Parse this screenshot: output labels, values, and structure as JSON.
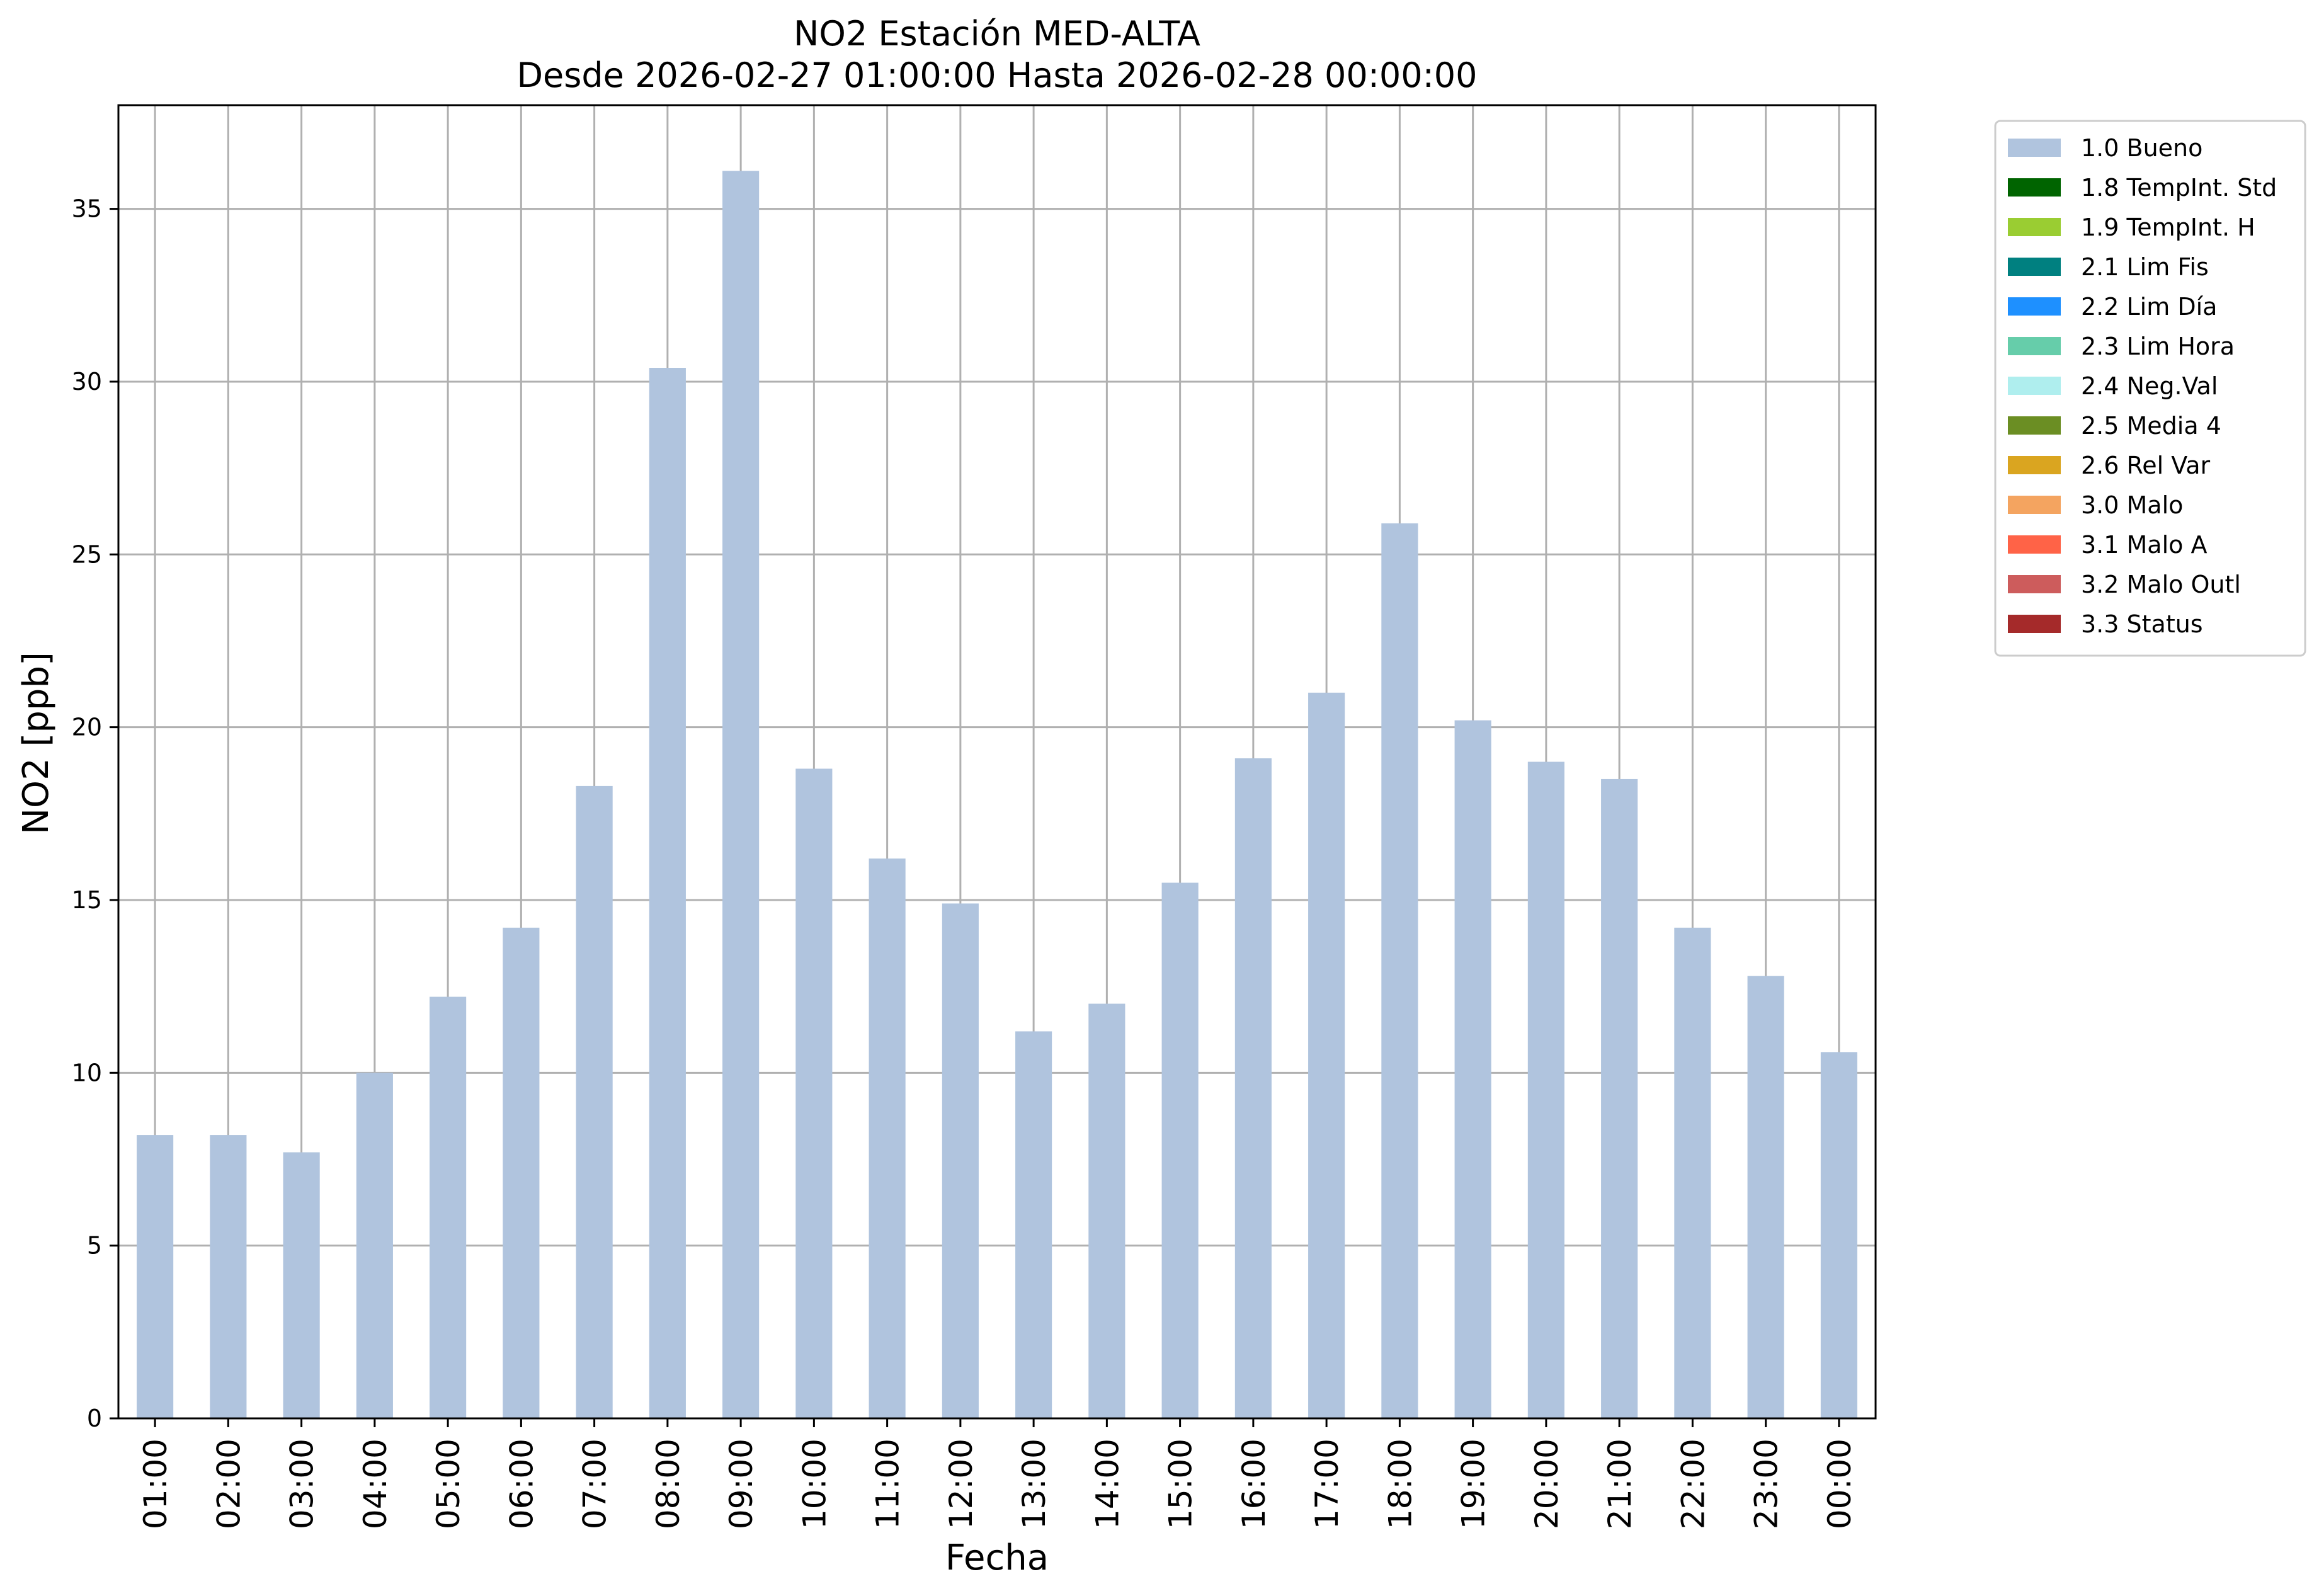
{
  "chart_data": {
    "type": "bar",
    "title_line1": "NO2 Estación MED-ALTA",
    "title_line2": "Desde 2026-02-27 01:00:00 Hasta 2026-02-28 00:00:00",
    "xlabel": "Fecha",
    "ylabel": "NO2 [ppb]",
    "ylim": [
      0,
      38
    ],
    "yticks": [
      0,
      5,
      10,
      15,
      20,
      25,
      30,
      35
    ],
    "grid": true,
    "legend_placement": "outside-top-right",
    "categories": [
      "01:00",
      "02:00",
      "03:00",
      "04:00",
      "05:00",
      "06:00",
      "07:00",
      "08:00",
      "09:00",
      "10:00",
      "11:00",
      "12:00",
      "13:00",
      "14:00",
      "15:00",
      "16:00",
      "17:00",
      "18:00",
      "19:00",
      "20:00",
      "21:00",
      "22:00",
      "23:00",
      "00:00"
    ],
    "series": [
      {
        "name": "1.0 Bueno",
        "color": "#b0c4de",
        "values": [
          8.2,
          8.2,
          7.7,
          10.0,
          12.2,
          14.2,
          18.3,
          30.4,
          36.1,
          18.8,
          16.2,
          14.9,
          11.2,
          12.0,
          15.5,
          19.1,
          21.0,
          25.9,
          20.2,
          19.0,
          18.5,
          14.2,
          12.8,
          10.6
        ]
      }
    ],
    "legend": [
      {
        "label": "1.0 Bueno",
        "color": "#b0c4de"
      },
      {
        "label": "1.8 TempInt. Std",
        "color": "#006400"
      },
      {
        "label": "1.9 TempInt. H",
        "color": "#9acd32"
      },
      {
        "label": "2.1 Lim Fis",
        "color": "#008080"
      },
      {
        "label": "2.2 Lim Día",
        "color": "#1e90ff"
      },
      {
        "label": "2.3 Lim Hora",
        "color": "#66cdaa"
      },
      {
        "label": "2.4 Neg.Val",
        "color": "#afeeee"
      },
      {
        "label": "2.5 Media 4",
        "color": "#6b8e23"
      },
      {
        "label": "2.6 Rel Var",
        "color": "#daa520"
      },
      {
        "label": "3.0 Malo",
        "color": "#f4a460"
      },
      {
        "label": "3.1 Malo A",
        "color": "#ff6347"
      },
      {
        "label": "3.2 Malo Outl",
        "color": "#cd5c5c"
      },
      {
        "label": "3.3 Status",
        "color": "#a52a2a"
      }
    ]
  }
}
